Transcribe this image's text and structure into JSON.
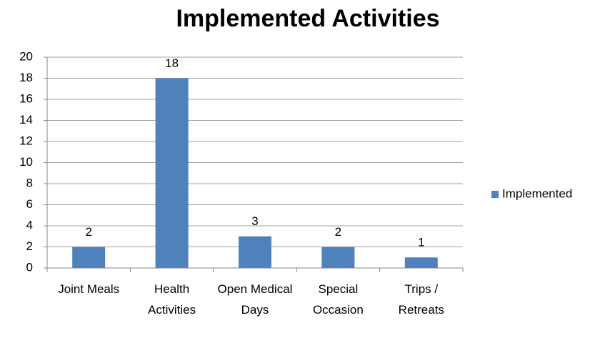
{
  "chart_data": {
    "type": "bar",
    "title": "Implemented Activities",
    "categories": [
      "Joint Meals",
      "Health Activities",
      "Open Medical Days",
      "Special Occasion",
      "Trips / Retreats"
    ],
    "series": [
      {
        "name": "Implemented",
        "color": "#4f81bd",
        "values": [
          2,
          18,
          3,
          2,
          1
        ]
      }
    ],
    "ylim": [
      0,
      20
    ],
    "yticks": [
      0,
      2,
      4,
      6,
      8,
      10,
      12,
      14,
      16,
      18,
      20
    ],
    "grid": true,
    "legend": "right"
  }
}
